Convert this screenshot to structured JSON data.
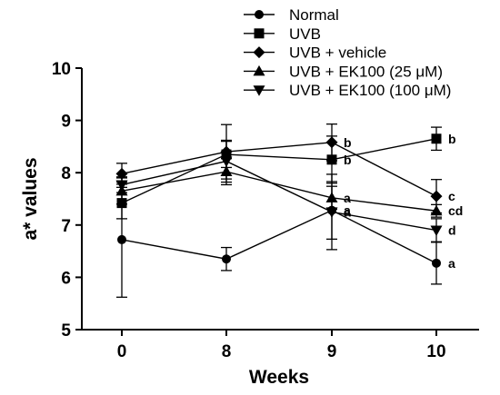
{
  "chart_data": {
    "type": "line",
    "xlabel": "Weeks",
    "ylabel": "a* values",
    "categories": [
      "0",
      "8",
      "9",
      "10"
    ],
    "ylim": [
      5,
      10
    ],
    "yticks": [
      5,
      6,
      7,
      8,
      9,
      10
    ],
    "grid": false,
    "legend_position": "top",
    "series": [
      {
        "name": "Normal",
        "marker": "circle",
        "values": [
          6.72,
          6.35,
          7.28,
          6.27
        ],
        "errors": [
          1.1,
          0.22,
          0.55,
          0.4
        ],
        "labels": [
          "",
          "",
          "a",
          "a"
        ]
      },
      {
        "name": "UVB",
        "marker": "square",
        "values": [
          7.42,
          8.35,
          8.25,
          8.65
        ],
        "errors": [
          0.3,
          0.25,
          0.45,
          0.22
        ],
        "labels": [
          "",
          "",
          "b",
          "b"
        ]
      },
      {
        "name": "UVB + vehicle",
        "marker": "diamond",
        "values": [
          7.98,
          8.4,
          8.58,
          7.55
        ],
        "errors": [
          0.2,
          0.52,
          0.35,
          0.32
        ],
        "labels": [
          "",
          "",
          "b",
          "c"
        ]
      },
      {
        "name": "UVB + EK100 (25 μM)",
        "marker": "triangle-up",
        "values": [
          7.65,
          8.02,
          7.52,
          7.27
        ],
        "errors": [
          0.25,
          0.25,
          0.22,
          0.12
        ],
        "labels": [
          "",
          "",
          "a",
          "cd"
        ]
      },
      {
        "name": "UVB + EK100 (100 μM)",
        "marker": "triangle-down",
        "values": [
          7.77,
          8.22,
          7.25,
          6.9
        ],
        "errors": [
          0.15,
          0.4,
          0.72,
          0.22
        ],
        "labels": [
          "",
          "",
          "a",
          "d"
        ]
      }
    ]
  }
}
